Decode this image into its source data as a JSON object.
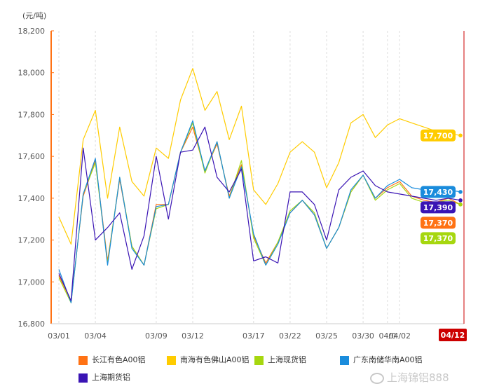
{
  "chart_data": {
    "type": "line",
    "unit_label": "(元/吨)",
    "ylim": [
      16800,
      18200
    ],
    "yticks": [
      16800,
      17000,
      17200,
      17400,
      17600,
      17800,
      18000,
      18200
    ],
    "ytick_labels": [
      "16,800",
      "17,000",
      "17,200",
      "17,400",
      "17,600",
      "17,800",
      "18,000",
      "18,200"
    ],
    "x": [
      "03/01",
      "03/02",
      "03/03",
      "03/04",
      "03/05",
      "03/06",
      "03/07",
      "03/08",
      "03/09",
      "03/10",
      "03/11",
      "03/12",
      "03/13",
      "03/14",
      "03/15",
      "03/16",
      "03/17",
      "03/18",
      "03/21",
      "03/22",
      "03/23",
      "03/24",
      "03/25",
      "03/28",
      "03/29",
      "03/30",
      "03/31",
      "04/01",
      "04/02",
      "04/06",
      "04/07",
      "04/08",
      "04/11",
      "04/12"
    ],
    "xtick_labels": [
      "03/01",
      "03/04",
      "03/09",
      "03/12",
      "03/17",
      "03/22",
      "03/25",
      "03/30",
      "04/02",
      "04/0"
    ],
    "crosshair_label": "04/12",
    "grid": "vertical-dashed",
    "legend_position": "bottom",
    "series": [
      {
        "name": "长江有色A00铝",
        "color": "#ff7214",
        "values": [
          17030,
          16910,
          17410,
          17580,
          17100,
          17490,
          17170,
          17080,
          17370,
          17370,
          17620,
          17740,
          17530,
          17660,
          17410,
          17560,
          17220,
          17090,
          17190,
          17330,
          17390,
          17320,
          17160,
          17260,
          17430,
          17510,
          17400,
          17450,
          17480,
          17410,
          17390,
          17380,
          17400,
          17370
        ],
        "end_label": "17,370"
      },
      {
        "name": "南海有色佛山A00铝",
        "color": "#ffcc00",
        "values": [
          17310,
          17180,
          17680,
          17820,
          17400,
          17740,
          17480,
          17410,
          17640,
          17590,
          17870,
          18020,
          17820,
          17910,
          17680,
          17840,
          17440,
          17370,
          17470,
          17620,
          17670,
          17620,
          17450,
          17570,
          17760,
          17800,
          17690,
          17750,
          17780,
          17760,
          17740,
          17720,
          17710,
          17700
        ],
        "end_label": "17,700"
      },
      {
        "name": "上海现货铝",
        "color": "#a6d70f",
        "values": [
          17020,
          16900,
          17420,
          17570,
          17090,
          17500,
          17170,
          17080,
          17350,
          17370,
          17620,
          17760,
          17520,
          17670,
          17400,
          17580,
          17210,
          17080,
          17190,
          17340,
          17390,
          17330,
          17160,
          17260,
          17430,
          17510,
          17390,
          17440,
          17470,
          17400,
          17380,
          17380,
          17390,
          17370
        ],
        "end_label": "17,370"
      },
      {
        "name": "广东南储华南A00铝",
        "color": "#1a8cdc",
        "values": [
          17060,
          16900,
          17420,
          17590,
          17080,
          17500,
          17160,
          17080,
          17360,
          17370,
          17620,
          17770,
          17530,
          17670,
          17400,
          17550,
          17230,
          17080,
          17180,
          17330,
          17390,
          17320,
          17160,
          17260,
          17440,
          17510,
          17400,
          17460,
          17490,
          17450,
          17440,
          17430,
          17440,
          17430
        ],
        "end_label": "17,430"
      },
      {
        "name": "上海期货铝",
        "color": "#3a14b4",
        "values": [
          17040,
          16910,
          17640,
          17200,
          17260,
          17330,
          17060,
          17220,
          17600,
          17300,
          17620,
          17630,
          17740,
          17500,
          17430,
          17540,
          17100,
          17120,
          17090,
          17430,
          17430,
          17370,
          17200,
          17440,
          17500,
          17530,
          17460,
          17430,
          17420,
          17410,
          17400,
          17390,
          17400,
          17390
        ],
        "end_label": "17,390"
      }
    ]
  },
  "watermark": "上海锦铝888"
}
